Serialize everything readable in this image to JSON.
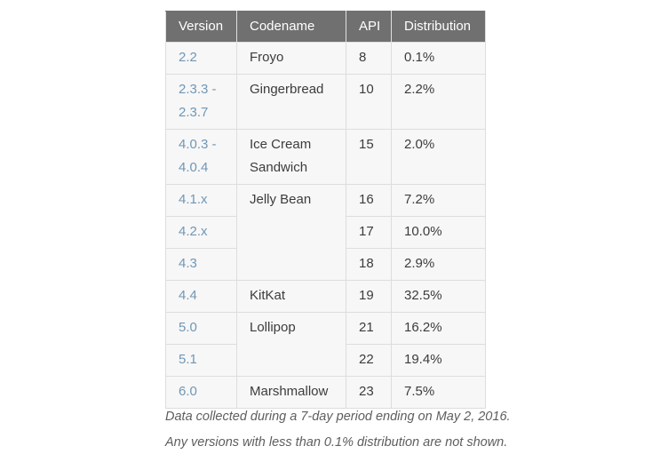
{
  "table": {
    "headers": [
      "Version",
      "Codename",
      "API",
      "Distribution"
    ],
    "groups": [
      {
        "codename": "Froyo",
        "rows": [
          {
            "version": "2.2",
            "api": "8",
            "distribution": "0.1%"
          }
        ]
      },
      {
        "codename": "Gingerbread",
        "rows": [
          {
            "version": "2.3.3 - 2.3.7",
            "api": "10",
            "distribution": "2.2%"
          }
        ]
      },
      {
        "codename": "Ice Cream Sandwich",
        "rows": [
          {
            "version": "4.0.3 - 4.0.4",
            "api": "15",
            "distribution": "2.0%"
          }
        ]
      },
      {
        "codename": "Jelly Bean",
        "rows": [
          {
            "version": "4.1.x",
            "api": "16",
            "distribution": "7.2%"
          },
          {
            "version": "4.2.x",
            "api": "17",
            "distribution": "10.0%"
          },
          {
            "version": "4.3",
            "api": "18",
            "distribution": "2.9%"
          }
        ]
      },
      {
        "codename": "KitKat",
        "rows": [
          {
            "version": "4.4",
            "api": "19",
            "distribution": "32.5%"
          }
        ]
      },
      {
        "codename": "Lollipop",
        "rows": [
          {
            "version": "5.0",
            "api": "21",
            "distribution": "16.2%"
          },
          {
            "version": "5.1",
            "api": "22",
            "distribution": "19.4%"
          }
        ]
      },
      {
        "codename": "Marshmallow",
        "rows": [
          {
            "version": "6.0",
            "api": "23",
            "distribution": "7.5%"
          }
        ]
      }
    ]
  },
  "footer": {
    "line1": "Data collected during a 7-day period ending on May 2, 2016.",
    "line2": "Any versions with less than 0.1% distribution are not shown."
  },
  "colors": {
    "header_bg": "#707070",
    "header_text": "#ffffff",
    "header_separator": "#e0e0e0",
    "row_bg": "#f7f7f7",
    "border": "#dddddd",
    "version_link": "#7097b5",
    "body_text": "#3c3c3c",
    "footer_text": "#5e5e5e"
  },
  "chart_data": {
    "type": "table",
    "columns": [
      "Version",
      "Codename",
      "API",
      "Distribution"
    ],
    "rows": [
      [
        "2.2",
        "Froyo",
        8,
        0.1
      ],
      [
        "2.3.3 - 2.3.7",
        "Gingerbread",
        10,
        2.2
      ],
      [
        "4.0.3 - 4.0.4",
        "Ice Cream Sandwich",
        15,
        2.0
      ],
      [
        "4.1.x",
        "Jelly Bean",
        16,
        7.2
      ],
      [
        "4.2.x",
        "Jelly Bean",
        17,
        10.0
      ],
      [
        "4.3",
        "Jelly Bean",
        18,
        2.9
      ],
      [
        "4.4",
        "KitKat",
        19,
        32.5
      ],
      [
        "5.0",
        "Lollipop",
        21,
        16.2
      ],
      [
        "5.1",
        "Lollipop",
        22,
        19.4
      ],
      [
        "6.0",
        "Marshmallow",
        23,
        7.5
      ]
    ],
    "distribution_unit": "%",
    "notes": [
      "Data collected during a 7-day period ending on May 2, 2016.",
      "Any versions with less than 0.1% distribution are not shown."
    ]
  }
}
